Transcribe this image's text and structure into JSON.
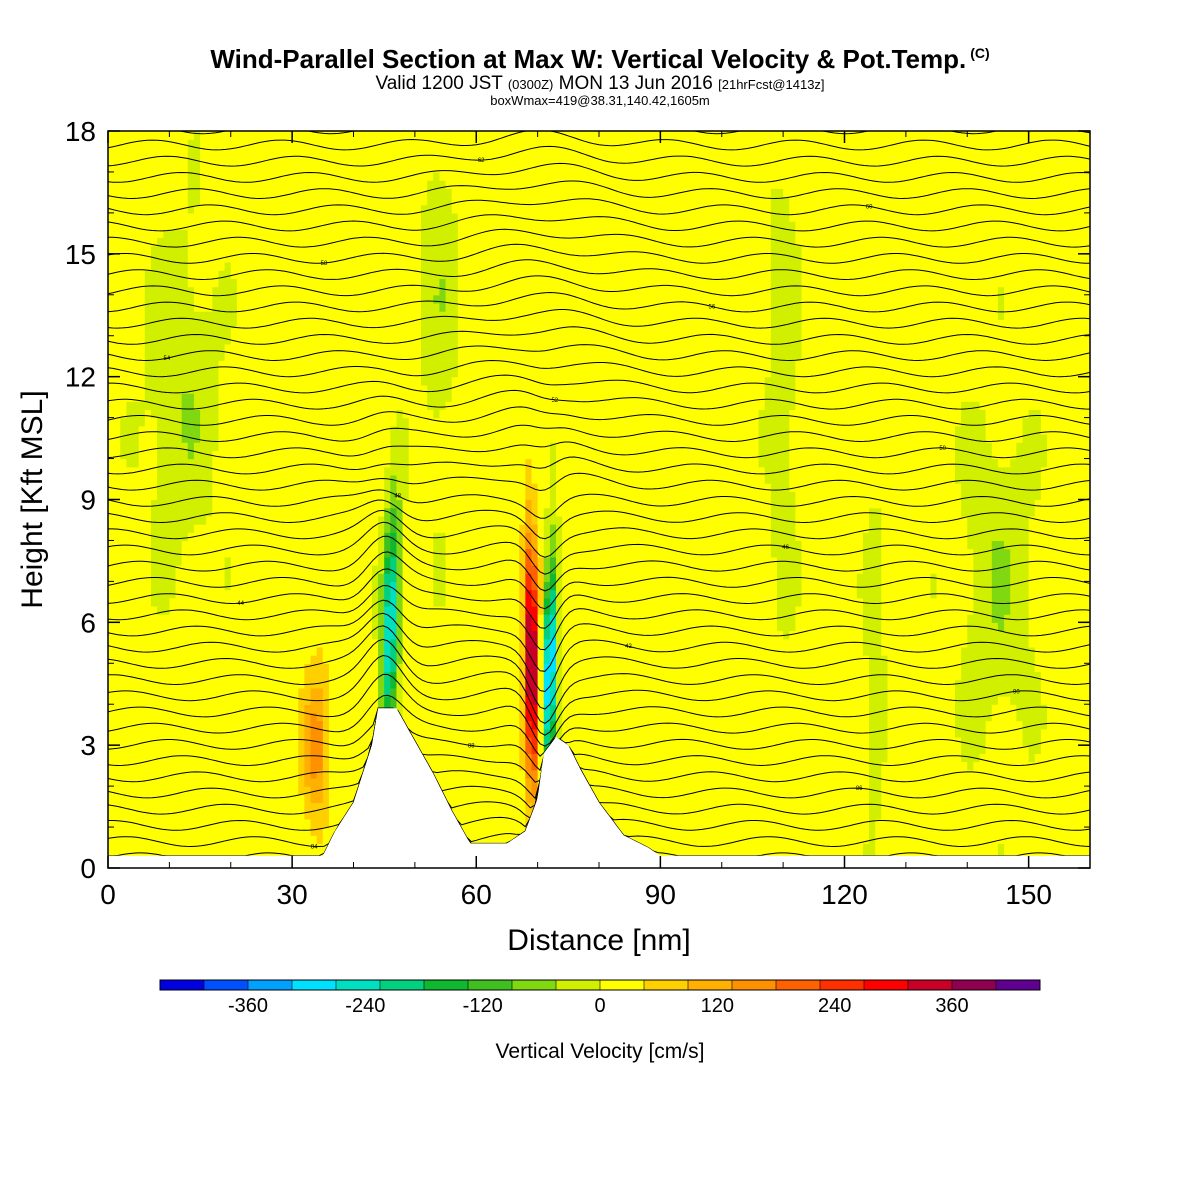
{
  "header": {
    "title": "Wind-Parallel Section at Max W: Vertical Velocity & Pot.Temp.",
    "title_tag": "(C)",
    "valid_prefix": "Valid 1200 JST",
    "valid_utc": "(0300Z)",
    "valid_date": "MON 13 Jun 2016",
    "valid_fcst": "[21hrFcst@1413z]",
    "boxline": "boxWmax=419@38.31,140.42,1605m"
  },
  "chart_data": {
    "type": "heatmap",
    "xlabel": "Distance [nm]",
    "ylabel": "Height [Kft MSL]",
    "xlim": [
      0,
      160
    ],
    "ylim": [
      0,
      18
    ],
    "x_ticks": [
      0,
      30,
      60,
      90,
      120,
      150
    ],
    "y_ticks": [
      0,
      3,
      6,
      9,
      12,
      15,
      18
    ],
    "colorbar": {
      "label": "Vertical Velocity [cm/s]",
      "tick_values": [
        -360,
        -240,
        -120,
        0,
        120,
        240,
        360
      ],
      "colors": [
        "#0000e0",
        "#0050ff",
        "#00a0ff",
        "#00e0ff",
        "#00e0c0",
        "#00d080",
        "#10b830",
        "#40c020",
        "#80d810",
        "#d0f000",
        "#ffff00",
        "#ffd000",
        "#ffb000",
        "#ff9000",
        "#ff6000",
        "#ff3000",
        "#ff0000",
        "#c80028",
        "#900050",
        "#600090"
      ]
    },
    "terrain": [
      {
        "x": 0,
        "h": 0.3
      },
      {
        "x": 35,
        "h": 0.3
      },
      {
        "x": 37,
        "h": 0.9
      },
      {
        "x": 40,
        "h": 1.6
      },
      {
        "x": 43,
        "h": 3.0
      },
      {
        "x": 44,
        "h": 3.9
      },
      {
        "x": 47,
        "h": 3.9
      },
      {
        "x": 50,
        "h": 3.1
      },
      {
        "x": 53,
        "h": 2.3
      },
      {
        "x": 56,
        "h": 1.4
      },
      {
        "x": 59,
        "h": 0.6
      },
      {
        "x": 61,
        "h": 0.6
      },
      {
        "x": 65,
        "h": 0.6
      },
      {
        "x": 68,
        "h": 0.9
      },
      {
        "x": 70,
        "h": 1.7
      },
      {
        "x": 71,
        "h": 2.8
      },
      {
        "x": 73,
        "h": 3.2
      },
      {
        "x": 75,
        "h": 3.0
      },
      {
        "x": 77,
        "h": 2.4
      },
      {
        "x": 80,
        "h": 1.6
      },
      {
        "x": 84,
        "h": 0.8
      },
      {
        "x": 88,
        "h": 0.5
      },
      {
        "x": 90,
        "h": 0.3
      },
      {
        "x": 160,
        "h": 0.3
      }
    ],
    "w_features": [
      {
        "x": 46,
        "y": 6.0,
        "w": -300,
        "rx": 1.4,
        "ry": 2.8,
        "tilt": 18
      },
      {
        "x": 34,
        "y": 3.0,
        "w": 140,
        "rx": 2.0,
        "ry": 1.8,
        "tilt": 12
      },
      {
        "x": 69,
        "y": 5.0,
        "w": 400,
        "rx": 1.1,
        "ry": 3.0,
        "tilt": -6
      },
      {
        "x": 72,
        "y": 5.0,
        "w": -360,
        "rx": 1.1,
        "ry": 2.6,
        "tilt": 12
      },
      {
        "x": 12,
        "y": 11.5,
        "w": -60,
        "rx": 6,
        "ry": 4,
        "tilt": 0
      },
      {
        "x": 54,
        "y": 14.0,
        "w": -50,
        "rx": 3,
        "ry": 5,
        "tilt": 0
      },
      {
        "x": 110,
        "y": 12.0,
        "w": -50,
        "rx": 2.5,
        "ry": 6,
        "tilt": 0
      },
      {
        "x": 145,
        "y": 7.0,
        "w": -60,
        "rx": 6,
        "ry": 4,
        "tilt": 0
      },
      {
        "x": 125,
        "y": 5.0,
        "w": -55,
        "rx": 1.5,
        "ry": 4,
        "tilt": 0
      }
    ],
    "theta_contours": {
      "levels_count": 46,
      "label_values": [
        "84",
        "86",
        "88",
        "90",
        "42",
        "44",
        "46",
        "48",
        "50",
        "52",
        "54",
        "56",
        "58",
        "60",
        "62"
      ]
    }
  }
}
